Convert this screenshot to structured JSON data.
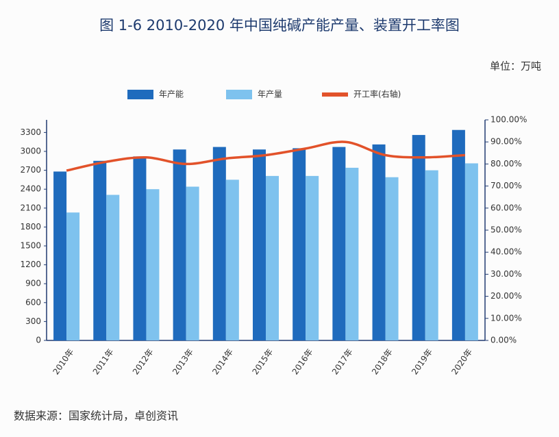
{
  "chart_data": {
    "type": "bar",
    "title": "图 1-6   2010-2020 年中国纯碱产能产量、装置开工率图",
    "unit_label": "单位：万吨",
    "source": "数据来源：国家统计局，卓创资讯",
    "categories": [
      "2010年",
      "2011年",
      "2012年",
      "2013年",
      "2014年",
      "2015年",
      "2016年",
      "2017年",
      "2018年",
      "2019年",
      "2020年"
    ],
    "series": [
      {
        "name": "年产能",
        "color": "#1f6bbd",
        "values": [
          2680,
          2850,
          2920,
          3030,
          3070,
          3030,
          3050,
          3070,
          3110,
          3260,
          3340
        ]
      },
      {
        "name": "年产量",
        "color": "#7ec2ee",
        "values": [
          2030,
          2310,
          2400,
          2440,
          2550,
          2610,
          2610,
          2740,
          2590,
          2700,
          2810
        ]
      },
      {
        "name": "开工率(右轴)",
        "color": "#e2522a",
        "axis": "y2",
        "type": "line",
        "values": [
          77,
          81,
          83,
          80,
          82.5,
          84,
          87,
          90,
          84,
          83,
          84
        ]
      }
    ],
    "ylim": [
      0,
      3500
    ],
    "yticks": [
      0,
      300,
      600,
      900,
      1200,
      1500,
      1800,
      2100,
      2400,
      2700,
      3000,
      3300
    ],
    "y2lim": [
      0,
      100
    ],
    "y2ticks": [
      {
        "value": 0,
        "label": "0.00%"
      },
      {
        "value": 10,
        "label": "10.00%"
      },
      {
        "value": 20,
        "label": "20.00%"
      },
      {
        "value": 30,
        "label": "30.00%"
      },
      {
        "value": 40,
        "label": "40.00%"
      },
      {
        "value": 50,
        "label": "50.00%"
      },
      {
        "value": 60,
        "label": "60.00%"
      },
      {
        "value": 70,
        "label": "70.00%"
      },
      {
        "value": 80,
        "label": "80.00%"
      },
      {
        "value": 90,
        "label": "90.00%"
      },
      {
        "value": 100,
        "label": "100.00%"
      }
    ]
  }
}
